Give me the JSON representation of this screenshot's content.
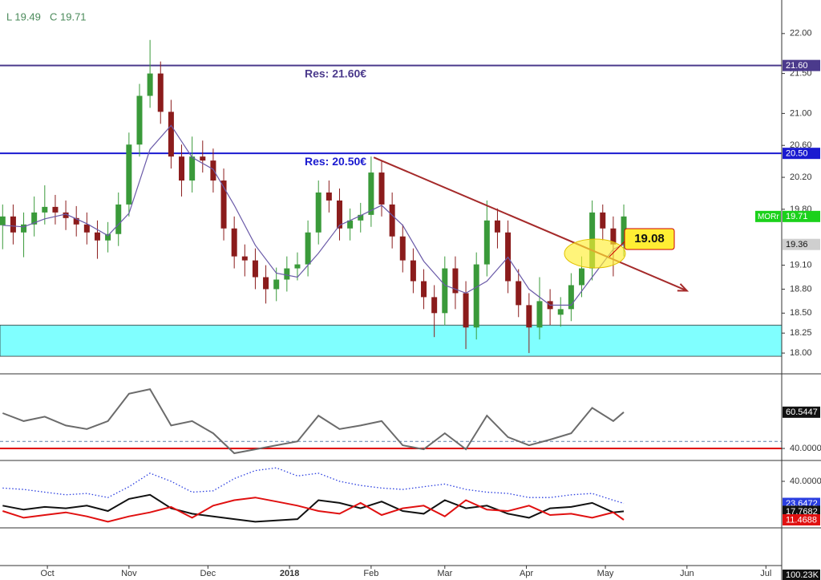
{
  "chart_data": [
    {
      "type": "candlestick",
      "header": [
        "L 19.49",
        "C 19.71"
      ],
      "symbol": "MORr",
      "up_color": "#3a9a3a",
      "down_color": "#8b1c1c",
      "x": [
        -17,
        -13,
        -9,
        -5,
        -1,
        3,
        7,
        11,
        15,
        19,
        23,
        27,
        31,
        35,
        39,
        43,
        47,
        51,
        55,
        59,
        63,
        67,
        71,
        75,
        79,
        83,
        87,
        91,
        95,
        99,
        103,
        107,
        111,
        115,
        119,
        123,
        127,
        131,
        135,
        139,
        143,
        147,
        151,
        155,
        159,
        163,
        167,
        171,
        175,
        179,
        183,
        187,
        191,
        195,
        199,
        203,
        207,
        211,
        215,
        219
      ],
      "open": [
        19.6,
        19.71,
        19.51,
        19.61,
        19.76,
        19.83,
        19.76,
        19.69,
        19.61,
        19.51,
        19.41,
        19.49,
        19.86,
        20.61,
        21.22,
        21.5,
        21.02,
        20.46,
        20.16,
        20.46,
        20.41,
        20.16,
        19.56,
        19.21,
        19.16,
        18.95,
        18.8,
        18.92,
        19.06,
        19.11,
        19.51,
        20.01,
        19.91,
        19.56,
        19.66,
        19.73,
        20.26,
        19.86,
        19.46,
        19.16,
        18.9,
        18.7,
        18.5,
        19.06,
        18.75,
        18.32,
        19.11,
        19.66,
        19.51,
        18.9,
        18.6,
        18.32,
        18.65,
        18.48,
        18.55,
        18.85,
        19.06,
        19.76,
        19.56,
        19.36
      ],
      "high": [
        19.86,
        19.86,
        19.76,
        19.96,
        20.1,
        19.98,
        19.91,
        19.84,
        19.76,
        19.66,
        19.64,
        20.01,
        20.76,
        21.37,
        21.92,
        21.65,
        21.17,
        20.61,
        20.71,
        20.66,
        20.56,
        20.31,
        19.71,
        19.36,
        19.31,
        19.1,
        19.07,
        19.21,
        19.26,
        19.66,
        20.16,
        20.16,
        20.06,
        19.81,
        19.88,
        20.46,
        20.41,
        20.01,
        19.61,
        19.31,
        19.05,
        18.85,
        19.21,
        19.21,
        18.9,
        19.26,
        19.91,
        19.81,
        19.66,
        19.05,
        18.75,
        18.95,
        18.8,
        18.7,
        19.0,
        19.21,
        19.91,
        19.86,
        19.71,
        19.86
      ],
      "low": [
        19.3,
        19.36,
        19.2,
        19.46,
        19.61,
        19.61,
        19.54,
        19.46,
        19.36,
        19.18,
        19.26,
        19.34,
        19.71,
        20.46,
        21.07,
        20.87,
        20.31,
        19.96,
        20.01,
        20.26,
        20.01,
        19.41,
        19.06,
        18.96,
        18.8,
        18.62,
        18.65,
        18.77,
        18.91,
        18.96,
        19.36,
        19.76,
        19.41,
        19.41,
        19.51,
        19.58,
        19.71,
        19.31,
        19.01,
        18.75,
        18.55,
        18.2,
        18.35,
        18.55,
        18.05,
        18.17,
        18.96,
        19.31,
        18.75,
        18.45,
        18.0,
        18.17,
        18.35,
        18.33,
        18.4,
        18.7,
        18.91,
        19.41,
        18.96,
        19.21
      ],
      "close": [
        19.71,
        19.51,
        19.61,
        19.76,
        19.83,
        19.76,
        19.69,
        19.61,
        19.51,
        19.41,
        19.49,
        19.86,
        20.61,
        21.22,
        21.5,
        21.02,
        20.46,
        20.16,
        20.46,
        20.41,
        20.16,
        19.56,
        19.21,
        19.16,
        18.95,
        18.8,
        18.92,
        19.06,
        19.11,
        19.51,
        20.01,
        19.91,
        19.56,
        19.66,
        19.73,
        20.26,
        19.86,
        19.46,
        19.16,
        18.9,
        18.7,
        18.5,
        19.06,
        18.75,
        18.32,
        19.11,
        19.66,
        19.51,
        18.9,
        18.6,
        18.32,
        18.65,
        18.55,
        18.55,
        18.85,
        19.06,
        19.76,
        19.56,
        19.36,
        19.71
      ],
      "ma": {
        "color": "#6a5aa8",
        "x": [
          -17,
          -9,
          -1,
          7,
          15,
          23,
          31,
          39,
          47,
          55,
          63,
          71,
          79,
          87,
          95,
          103,
          111,
          119,
          127,
          135,
          143,
          151,
          159,
          167,
          175,
          183,
          191,
          199,
          207,
          215,
          219
        ],
        "values": [
          19.6,
          19.58,
          19.68,
          19.74,
          19.62,
          19.47,
          19.75,
          20.55,
          20.85,
          20.45,
          20.3,
          19.85,
          19.35,
          19.0,
          18.95,
          19.25,
          19.6,
          19.72,
          19.85,
          19.6,
          19.15,
          18.85,
          18.75,
          18.9,
          19.2,
          18.8,
          18.6,
          18.6,
          18.95,
          19.3,
          19.36
        ]
      },
      "levels": [
        {
          "value": 21.6,
          "label": "21.60",
          "text": "Res: 21.60€",
          "color": "#4b3a8c"
        },
        {
          "value": 20.5,
          "label": "20.50",
          "text": "Res: 20.50€",
          "color": "#1a1ad0"
        }
      ],
      "zone": {
        "low": 17.96,
        "high": 18.35,
        "color": "#80ffff"
      },
      "trendline": {
        "x": [
          124,
          243
        ],
        "values": [
          20.45,
          18.78
        ],
        "color": "#a52a2a"
      },
      "callout": 19.08,
      "xlim": [
        -18,
        279
      ],
      "ylim": [
        17.75,
        22.42
      ],
      "yticks": [
        {
          "value": 18,
          "label": "18.00"
        },
        18.25,
        {
          "value": 18.5,
          "label": "18.50"
        },
        {
          "value": 18.8,
          "label": "18.80"
        },
        {
          "value": 19.1,
          "label": "19.10"
        },
        {
          "value": 19.8,
          "label": "19.80"
        },
        {
          "value": 20.2,
          "label": "20.20"
        },
        {
          "value": 20.6,
          "label": "20.60"
        },
        {
          "value": 21,
          "label": "21.00"
        },
        {
          "value": 21.5,
          "label": "21.50"
        },
        {
          "value": 22,
          "label": "22.00"
        }
      ],
      "xticks": [
        {
          "value": 0,
          "label": "Oct"
        },
        {
          "value": 31,
          "label": "Nov"
        },
        {
          "value": 61,
          "label": "Dec"
        },
        {
          "value": 92,
          "label": "2018"
        },
        {
          "value": 123,
          "label": "Feb"
        },
        {
          "value": 151,
          "label": "Mar"
        },
        {
          "value": 182,
          "label": "Apr"
        },
        {
          "value": 212,
          "label": "May"
        },
        {
          "value": 243,
          "label": "Jun"
        },
        {
          "value": 273,
          "label": "Jul"
        }
      ]
    },
    {
      "type": "line",
      "x": [
        -17,
        -9,
        -1,
        7,
        15,
        23,
        31,
        39,
        47,
        55,
        63,
        71,
        79,
        87,
        95,
        103,
        111,
        119,
        127,
        135,
        143,
        151,
        159,
        167,
        175,
        183,
        191,
        199,
        207,
        215,
        219
      ],
      "series": [
        {
          "color": "#6b6b6b",
          "tag_color": "#111111",
          "values": [
            60,
            55.5,
            58,
            53,
            51,
            55.5,
            71,
            73.6,
            53,
            55.5,
            48.6,
            37.3,
            39.5,
            41.8,
            44,
            58.6,
            51,
            53,
            55.5,
            41.8,
            39.5,
            48.6,
            39.5,
            58.6,
            46.4,
            41.8,
            45,
            48.6,
            63,
            55.5,
            60.5447
          ]
        }
      ],
      "levels": [
        {
          "value": 40,
          "color": "#e00000"
        },
        {
          "value": 44,
          "color": "#5a7fa8",
          "dash": true
        }
      ],
      "ylim": [
        34.1,
        79.1
      ],
      "yticks": [
        {
          "value": 40,
          "label": "40.0000"
        }
      ]
    },
    {
      "type": "line",
      "x": [
        -17,
        -9,
        -1,
        7,
        15,
        23,
        31,
        39,
        47,
        55,
        63,
        71,
        79,
        87,
        95,
        103,
        111,
        119,
        127,
        135,
        143,
        151,
        159,
        167,
        175,
        183,
        191,
        199,
        207,
        215,
        219
      ],
      "series": [
        {
          "color": "#2a3ee0",
          "tag_color": "#2a3ee0",
          "dash": true,
          "values": [
            35,
            34,
            32,
            30,
            31,
            28,
            36,
            46,
            40,
            32,
            33,
            42,
            48,
            50,
            44,
            46,
            40,
            37,
            35,
            34,
            36,
            38,
            34,
            32,
            31,
            28,
            28,
            30,
            31,
            26,
            23.6472
          ]
        },
        {
          "color": "#111111",
          "tag_color": "#111111",
          "values": [
            22,
            19,
            21,
            20,
            22,
            18,
            27,
            30,
            20,
            16,
            14,
            12,
            10,
            11,
            12,
            26,
            24,
            20,
            25,
            18,
            16,
            26,
            20,
            22,
            16,
            13,
            20,
            21,
            24,
            17,
            17.7682
          ]
        },
        {
          "color": "#e01010",
          "tag_color": "#e01010",
          "values": [
            18,
            13,
            15,
            17,
            14,
            10,
            14,
            17,
            21,
            13,
            22,
            26,
            28,
            25,
            22,
            18,
            16,
            24,
            15,
            20,
            22,
            14,
            26,
            19,
            18,
            22,
            15,
            16,
            13,
            17,
            11.4688
          ]
        }
      ],
      "ylim": [
        6.1,
        51.9
      ],
      "yticks": [
        {
          "value": 40,
          "label": "40.0000"
        }
      ]
    },
    {
      "type": "volume",
      "last_label": "100.23K"
    }
  ]
}
